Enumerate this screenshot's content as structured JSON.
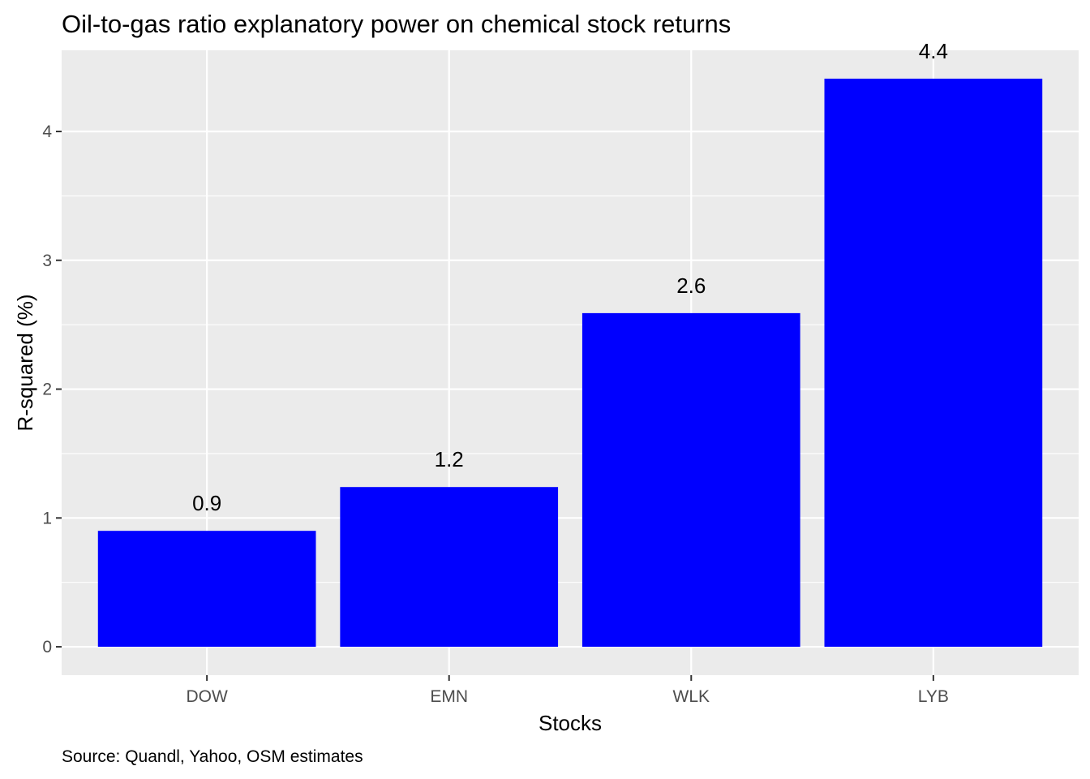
{
  "chart_data": {
    "type": "bar",
    "title": "Oil-to-gas ratio explanatory power on chemical stock returns",
    "xlabel": "Stocks",
    "ylabel": "R-squared (%)",
    "caption": "Source: Quandl, Yahoo, OSM estimates",
    "categories": [
      "DOW",
      "EMN",
      "WLK",
      "LYB"
    ],
    "values": [
      0.9,
      1.24,
      2.59,
      4.41
    ],
    "data_labels": [
      "0.9",
      "1.2",
      "2.6",
      "4.4"
    ],
    "ylim": [
      -0.22,
      4.63
    ],
    "yticks": [
      0,
      1,
      2,
      3,
      4
    ],
    "ytick_labels": [
      "0",
      "1",
      "2",
      "3",
      "4"
    ],
    "bar_color": "#0000ff",
    "panel_background": "#ebebeb",
    "grid": true,
    "legend": "none"
  }
}
